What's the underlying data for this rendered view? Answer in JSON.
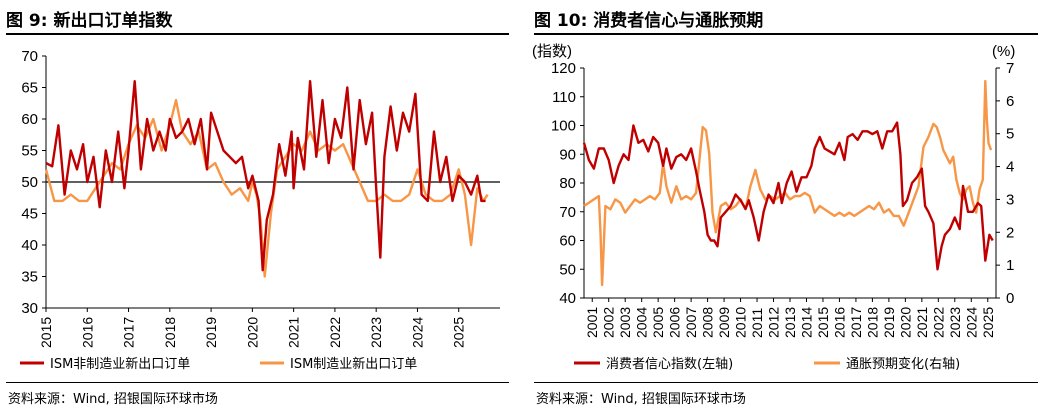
{
  "colors": {
    "red": "#c00000",
    "orange": "#f79646",
    "text": "#000000"
  },
  "left_panel": {
    "title": "图 9: 新出口订单指数",
    "source": "资料来源：Wind, 招银国际环球市场"
  },
  "right_panel": {
    "title": "图 10: 消费者信心与通胀预期",
    "source": "资料来源：Wind, 招银国际环球市场"
  },
  "chart_data": [
    {
      "type": "line",
      "title": "图 9: 新出口订单指数",
      "ylim": [
        30,
        70
      ],
      "yticks": [
        "30",
        "35",
        "40",
        "45",
        "50",
        "55",
        "60",
        "65",
        "70"
      ],
      "reference_line": 50,
      "x_range": [
        2015,
        2026
      ],
      "x_tick_labels": [
        "2015",
        "2016",
        "2017",
        "2018",
        "2019",
        "2020",
        "2021",
        "2022",
        "2023",
        "2024",
        "2025"
      ],
      "series": [
        {
          "name": "ISM非制造业新出口订单",
          "color": "#c00000",
          "x": [
            2015.0,
            2015.15,
            2015.3,
            2015.45,
            2015.6,
            2015.75,
            2015.9,
            2016.0,
            2016.15,
            2016.3,
            2016.45,
            2016.6,
            2016.75,
            2016.9,
            2017.0,
            2017.15,
            2017.3,
            2017.45,
            2017.6,
            2017.75,
            2017.9,
            2018.0,
            2018.15,
            2018.3,
            2018.45,
            2018.6,
            2018.75,
            2018.9,
            2019.0,
            2019.15,
            2019.3,
            2019.45,
            2019.6,
            2019.75,
            2019.9,
            2020.0,
            2020.15,
            2020.25,
            2020.35,
            2020.5,
            2020.65,
            2020.8,
            2020.95,
            2021.0,
            2021.1,
            2021.25,
            2021.4,
            2021.55,
            2021.7,
            2021.85,
            2022.0,
            2022.15,
            2022.3,
            2022.45,
            2022.6,
            2022.75,
            2022.9,
            2023.0,
            2023.1,
            2023.2,
            2023.35,
            2023.5,
            2023.65,
            2023.8,
            2023.95,
            2024.1,
            2024.25,
            2024.4,
            2024.55,
            2024.7,
            2024.85,
            2025.0,
            2025.15,
            2025.3,
            2025.45,
            2025.55,
            2025.65
          ],
          "values": [
            53,
            52.5,
            59,
            48,
            55,
            52,
            56,
            50,
            54,
            46,
            55,
            50,
            58,
            49,
            55,
            66,
            52,
            60,
            55,
            58,
            55,
            60,
            57,
            58,
            60,
            56,
            60,
            52,
            61,
            58,
            55,
            54,
            53,
            54,
            49,
            51,
            47,
            36,
            44,
            48,
            56,
            51,
            58,
            49,
            57,
            52,
            66,
            54,
            63,
            53,
            60,
            57,
            65,
            52,
            63,
            56,
            61,
            49,
            38,
            54,
            62,
            55,
            61,
            58,
            64,
            48,
            47,
            58,
            50,
            54,
            47,
            51,
            50,
            48,
            51,
            47,
            47
          ]
        },
        {
          "name": "ISM制造业新出口订单",
          "color": "#f79646",
          "x": [
            2015.0,
            2015.2,
            2015.4,
            2015.6,
            2015.8,
            2016.0,
            2016.2,
            2016.4,
            2016.6,
            2016.8,
            2017.0,
            2017.2,
            2017.4,
            2017.6,
            2017.8,
            2018.0,
            2018.15,
            2018.3,
            2018.5,
            2018.7,
            2018.9,
            2019.1,
            2019.3,
            2019.5,
            2019.7,
            2019.9,
            2020.0,
            2020.1,
            2020.2,
            2020.3,
            2020.45,
            2020.6,
            2020.8,
            2021.0,
            2021.2,
            2021.4,
            2021.6,
            2021.8,
            2022.0,
            2022.2,
            2022.4,
            2022.6,
            2022.8,
            2023.0,
            2023.2,
            2023.4,
            2023.6,
            2023.8,
            2024.0,
            2024.2,
            2024.4,
            2024.6,
            2024.8,
            2025.0,
            2025.15,
            2025.3,
            2025.45,
            2025.6,
            2025.7
          ],
          "values": [
            52,
            47,
            47,
            48,
            47,
            47,
            49,
            51,
            53,
            52,
            56,
            59,
            57,
            60,
            55,
            59,
            63,
            58,
            56,
            58,
            52,
            53,
            50,
            48,
            49,
            47,
            50,
            48,
            44,
            35,
            45,
            52,
            54,
            56,
            55,
            58,
            55,
            56,
            55,
            56,
            53,
            50,
            47,
            47,
            48,
            47,
            47,
            48,
            52,
            48,
            47,
            47,
            48,
            52,
            48,
            40,
            49,
            47,
            48
          ]
        }
      ]
    },
    {
      "type": "line",
      "title": "图 10: 消费者信心与通胀预期",
      "y_left_label": "(指数)",
      "y_right_label": "(%)",
      "ylim_left": [
        40,
        120
      ],
      "ylim_right": [
        0,
        7
      ],
      "yticks_left": [
        "40",
        "50",
        "60",
        "70",
        "80",
        "90",
        "100",
        "110",
        "120"
      ],
      "yticks_right": [
        "0",
        "1",
        "2",
        "3",
        "4",
        "5",
        "6",
        "7"
      ],
      "x_range": [
        2001,
        2026
      ],
      "x_tick_labels": [
        "2001",
        "2002",
        "2003",
        "2004",
        "2005",
        "2006",
        "2007",
        "2008",
        "2009",
        "2010",
        "2011",
        "2012",
        "2013",
        "2014",
        "2015",
        "2016",
        "2017",
        "2018",
        "2019",
        "2020",
        "2021",
        "2022",
        "2023",
        "2024",
        "2025"
      ],
      "series": [
        {
          "name": "消费者信心指数(左轴)",
          "axis": "left",
          "color": "#c00000",
          "x": [
            2001.0,
            2001.3,
            2001.6,
            2001.9,
            2002.2,
            2002.5,
            2002.8,
            2003.1,
            2003.4,
            2003.7,
            2004.0,
            2004.3,
            2004.6,
            2004.9,
            2005.2,
            2005.5,
            2005.8,
            2006.0,
            2006.3,
            2006.6,
            2006.9,
            2007.2,
            2007.5,
            2007.8,
            2008.0,
            2008.3,
            2008.5,
            2008.7,
            2008.9,
            2009.1,
            2009.3,
            2009.6,
            2009.9,
            2010.2,
            2010.5,
            2010.8,
            2011.0,
            2011.3,
            2011.6,
            2011.9,
            2012.2,
            2012.5,
            2012.8,
            2013.0,
            2013.3,
            2013.6,
            2013.9,
            2014.2,
            2014.5,
            2014.8,
            2015.0,
            2015.3,
            2015.6,
            2015.9,
            2016.2,
            2016.5,
            2016.8,
            2017.0,
            2017.3,
            2017.6,
            2017.9,
            2018.2,
            2018.5,
            2018.8,
            2019.1,
            2019.4,
            2019.7,
            2020.0,
            2020.2,
            2020.35,
            2020.6,
            2020.9,
            2021.2,
            2021.5,
            2021.7,
            2021.9,
            2022.2,
            2022.45,
            2022.7,
            2022.9,
            2023.2,
            2023.5,
            2023.8,
            2024.0,
            2024.3,
            2024.6,
            2024.9,
            2025.1,
            2025.35,
            2025.6,
            2025.8
          ],
          "values": [
            94,
            88,
            85,
            92,
            92,
            88,
            80,
            86,
            90,
            88,
            100,
            94,
            95,
            91,
            96,
            94,
            86,
            92,
            85,
            89,
            90,
            88,
            92,
            84,
            78,
            70,
            62,
            60,
            60,
            58,
            68,
            70,
            72,
            76,
            74,
            71,
            74,
            68,
            60,
            70,
            76,
            73,
            80,
            73,
            80,
            84,
            77,
            82,
            82,
            86,
            92,
            96,
            92,
            91,
            90,
            94,
            88,
            96,
            97,
            95,
            98,
            98,
            97,
            98,
            92,
            98,
            98,
            101,
            90,
            72,
            74,
            80,
            82,
            85,
            72,
            70,
            66,
            50,
            58,
            62,
            64,
            68,
            64,
            79,
            70,
            70,
            73,
            72,
            53,
            62,
            60
          ]
        },
        {
          "name": "通胀预期变化(右轴)",
          "axis": "right",
          "color": "#f79646",
          "x": [
            2001.0,
            2001.3,
            2001.6,
            2001.9,
            2002.0,
            2002.1,
            2002.3,
            2002.6,
            2002.9,
            2003.2,
            2003.5,
            2003.8,
            2004.1,
            2004.4,
            2004.7,
            2005.0,
            2005.3,
            2005.6,
            2005.8,
            2006.0,
            2006.3,
            2006.6,
            2006.9,
            2007.2,
            2007.5,
            2007.8,
            2008.0,
            2008.2,
            2008.4,
            2008.6,
            2008.8,
            2009.0,
            2009.3,
            2009.6,
            2009.9,
            2010.2,
            2010.5,
            2010.8,
            2011.1,
            2011.4,
            2011.7,
            2012.0,
            2012.3,
            2012.6,
            2012.9,
            2013.2,
            2013.5,
            2013.8,
            2014.1,
            2014.4,
            2014.7,
            2015.0,
            2015.3,
            2015.6,
            2015.9,
            2016.2,
            2016.5,
            2016.8,
            2017.1,
            2017.4,
            2017.7,
            2018.0,
            2018.3,
            2018.6,
            2018.9,
            2019.2,
            2019.5,
            2019.8,
            2020.1,
            2020.4,
            2020.7,
            2021.0,
            2021.3,
            2021.6,
            2021.9,
            2022.2,
            2022.4,
            2022.6,
            2022.8,
            2023.0,
            2023.2,
            2023.4,
            2023.6,
            2023.8,
            2024.0,
            2024.2,
            2024.4,
            2024.6,
            2024.8,
            2025.0,
            2025.2,
            2025.35,
            2025.45,
            2025.55,
            2025.7
          ],
          "values": [
            2.8,
            2.9,
            3.0,
            3.1,
            2.0,
            0.4,
            2.8,
            2.7,
            3.0,
            2.9,
            2.6,
            2.8,
            3.0,
            2.9,
            3.0,
            3.1,
            3.0,
            3.2,
            4.1,
            3.4,
            2.9,
            3.4,
            3.0,
            3.1,
            3.0,
            3.2,
            4.2,
            5.2,
            5.1,
            4.4,
            2.6,
            2.0,
            2.8,
            2.9,
            2.7,
            2.8,
            3.0,
            2.7,
            3.4,
            3.9,
            3.3,
            3.0,
            3.1,
            3.0,
            3.1,
            3.2,
            3.0,
            3.1,
            3.1,
            3.2,
            3.1,
            2.6,
            2.8,
            2.7,
            2.6,
            2.5,
            2.6,
            2.5,
            2.6,
            2.5,
            2.6,
            2.7,
            2.8,
            2.7,
            2.9,
            2.6,
            2.7,
            2.5,
            2.5,
            2.2,
            2.6,
            3.0,
            3.4,
            4.6,
            4.9,
            5.3,
            5.2,
            4.9,
            4.5,
            4.3,
            4.1,
            4.3,
            3.6,
            3.2,
            3.0,
            3.3,
            3.4,
            2.9,
            2.6,
            3.3,
            3.6,
            6.6,
            5.4,
            4.7,
            4.5
          ]
        }
      ]
    }
  ]
}
